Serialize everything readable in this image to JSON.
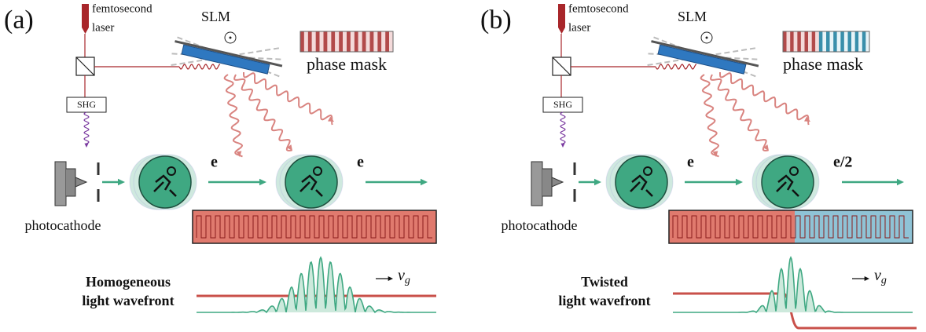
{
  "panels": [
    {
      "label": "(a)",
      "laser": [
        "femtosecond",
        "laser"
      ],
      "slm": "SLM",
      "phase_mask": "phase mask",
      "shg": "SHG",
      "electron_labels": [
        "e",
        "e"
      ],
      "photocathode": "photocathode",
      "wavefront": [
        "Homogeneous",
        "light wavefront"
      ],
      "velocity": {
        "symbol": "v",
        "subscript": "g"
      },
      "mode": "homogeneous"
    },
    {
      "label": "(b)",
      "laser": [
        "femtosecond",
        "laser"
      ],
      "slm": "SLM",
      "phase_mask": "phase mask",
      "shg": "SHG",
      "electron_labels": [
        "e",
        "e/2"
      ],
      "photocathode": "photocathode",
      "wavefront": [
        "Twisted",
        "light wavefront"
      ],
      "velocity": {
        "symbol": "v",
        "subscript": "g"
      },
      "mode": "twisted"
    }
  ]
}
